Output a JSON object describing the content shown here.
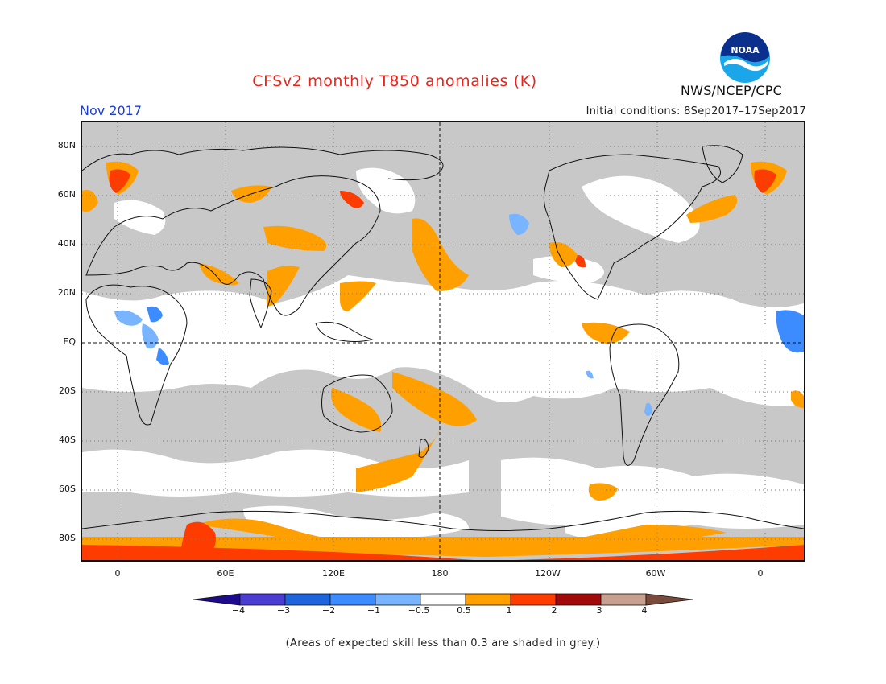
{
  "header": {
    "title": "CFSv2 monthly T850 anomalies (K)",
    "period": "Nov 2017",
    "initial_conditions": "Initial conditions: 8Sep2017–17Sep2017",
    "agency": "NWS/NCEP/CPC",
    "logo_text": "NOAA"
  },
  "map": {
    "projection": "equirectangular",
    "lon_range": [
      -20,
      380
    ],
    "lat_range": [
      -90,
      90
    ],
    "y_ticks": [
      {
        "label": "80N",
        "lat": 80
      },
      {
        "label": "60N",
        "lat": 60
      },
      {
        "label": "40N",
        "lat": 40
      },
      {
        "label": "20N",
        "lat": 20
      },
      {
        "label": "EQ",
        "lat": 0
      },
      {
        "label": "20S",
        "lat": -20
      },
      {
        "label": "40S",
        "lat": -40
      },
      {
        "label": "60S",
        "lat": -60
      },
      {
        "label": "80S",
        "lat": -80
      }
    ],
    "x_ticks": [
      {
        "label": "0",
        "lon": 0
      },
      {
        "label": "60E",
        "lon": 60
      },
      {
        "label": "120E",
        "lon": 120
      },
      {
        "label": "180",
        "lon": 180
      },
      {
        "label": "120W",
        "lon": 240
      },
      {
        "label": "60W",
        "lon": 300
      },
      {
        "label": "0",
        "lon": 360
      }
    ],
    "colors": {
      "grey": "#c8c8c8",
      "white": "#ffffff",
      "orange": "#ffa000",
      "red": "#ff3c00",
      "light_blue": "#78b4ff",
      "blue": "#3c8cff"
    }
  },
  "colorbar": {
    "labels": [
      "−4",
      "−3",
      "−2",
      "−1",
      "−0.5",
      "0.5",
      "1",
      "2",
      "3",
      "4"
    ],
    "colors": [
      "#1e0a8c",
      "#4b3cd2",
      "#1e64dc",
      "#3c8cff",
      "#78b4ff",
      "#ffffff",
      "#ffa000",
      "#ff3c00",
      "#a00a0a",
      "#c8a090",
      "#7a4a3a"
    ]
  },
  "footnote": "(Areas of expected skill less than 0.3 are shaded in grey.)"
}
